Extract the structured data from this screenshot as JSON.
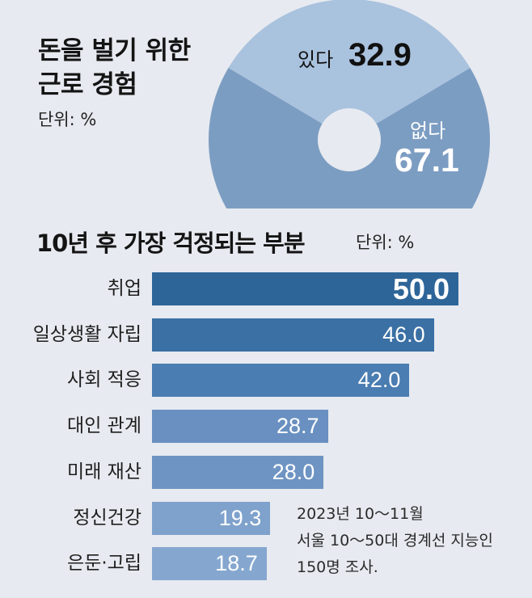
{
  "background": "#e7eaf0",
  "chart_data": [
    {
      "type": "pie",
      "title_lines": [
        "돈을 벌기 위한",
        "근로 경험"
      ],
      "unit": "단위: %",
      "categories": [
        "있다",
        "없다"
      ],
      "values": [
        32.9,
        67.1
      ],
      "colors": [
        "#a9c2de",
        "#7c9dc2"
      ]
    },
    {
      "type": "bar",
      "orientation": "horizontal",
      "title": "10년 후 가장 걱정되는 부분",
      "unit": "단위: %",
      "categories": [
        "취업",
        "일상생활 자립",
        "사회 적응",
        "대인 관계",
        "미래 재산",
        "정신건강",
        "은둔·고립"
      ],
      "values": [
        50.0,
        46.0,
        42.0,
        28.7,
        28.0,
        19.3,
        18.7
      ],
      "colors": [
        "#2e6599",
        "#3a70a4",
        "#4a7db1",
        "#6990c0",
        "#6e94c3",
        "#7fa2cc",
        "#85a7cf"
      ],
      "grid": false
    }
  ],
  "note_lines": [
    "2023년 10～11월",
    "서울 10～50대 경계선 지능인",
    "150명 조사."
  ]
}
